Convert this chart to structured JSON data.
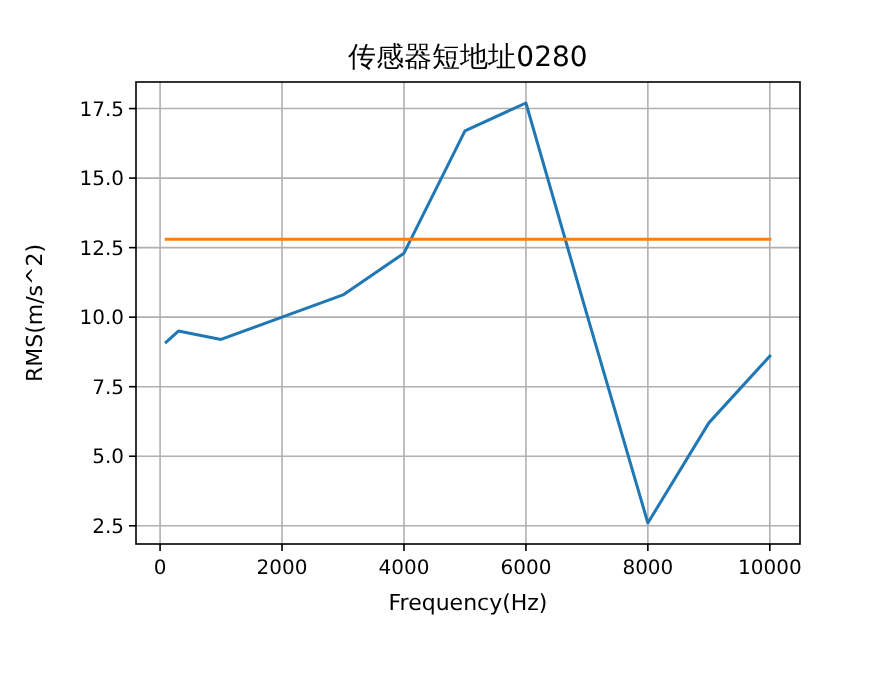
{
  "chart_data": {
    "type": "line",
    "title": "传感器短地址0280",
    "xlabel": "Frequency(Hz)",
    "ylabel": "RMS(m/s^2)",
    "series": [
      {
        "color": "#1f77b4",
        "x": [
          100,
          300,
          1000,
          2000,
          3000,
          4000,
          5000,
          6000,
          7000,
          8000,
          9000,
          10000
        ],
        "values": [
          9.1,
          9.5,
          9.2,
          10.0,
          10.8,
          12.3,
          16.7,
          17.7,
          10.1,
          2.6,
          6.2,
          8.6
        ]
      },
      {
        "color": "#ff7f0e",
        "x": [
          100,
          10000
        ],
        "values": [
          12.8,
          12.8
        ]
      }
    ],
    "xlim": [
      -395,
      10495
    ],
    "ylim": [
      1.845,
      18.455
    ],
    "xticks": [
      0,
      2000,
      4000,
      6000,
      8000,
      10000
    ],
    "yticks": [
      2.5,
      {
        "value": 5,
        "label": "5.0"
      },
      7.5,
      {
        "value": 10,
        "label": "10.0"
      },
      12.5,
      {
        "value": 15,
        "label": "15.0"
      },
      17.5
    ],
    "grid": true
  }
}
